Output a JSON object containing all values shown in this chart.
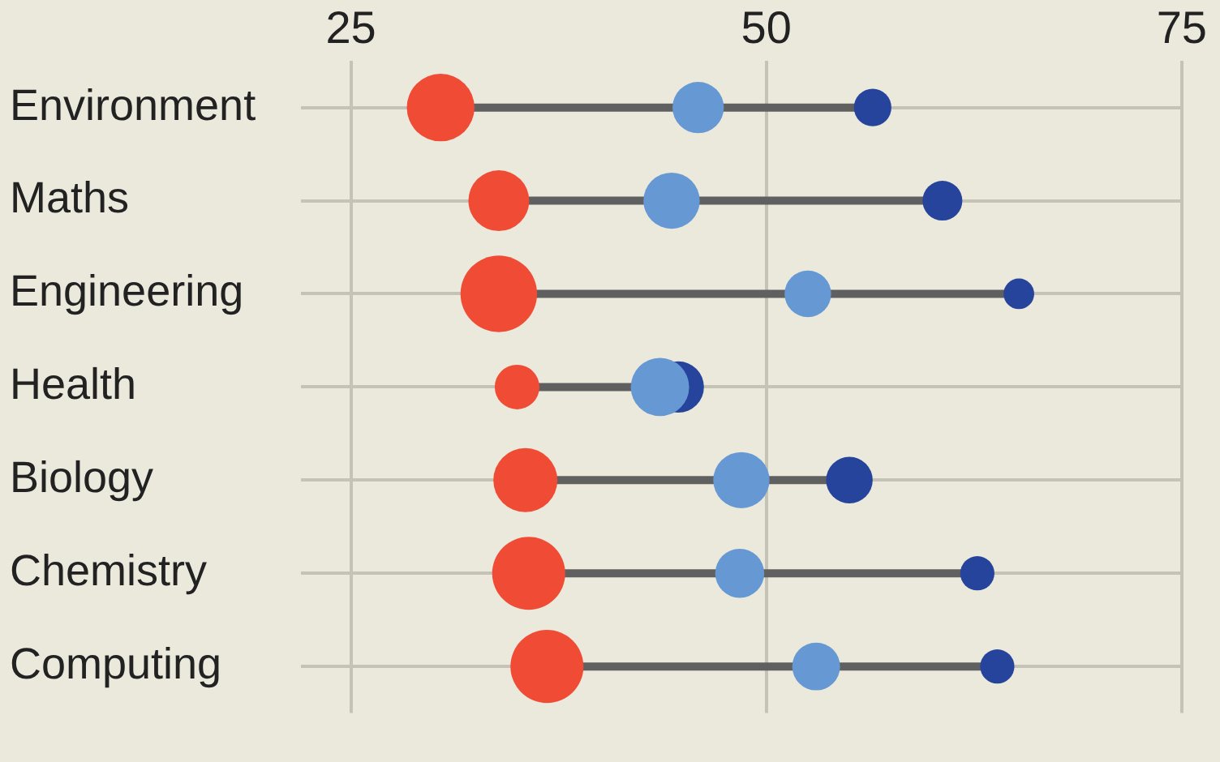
{
  "chart_data": {
    "type": "bubble",
    "orientation": "horizontal",
    "categories": [
      "Environment",
      "Maths",
      "Engineering",
      "Health",
      "Biology",
      "Chemistry",
      "Computing"
    ],
    "series": [
      {
        "color": "#f04c35",
        "values": [
          30.4,
          33.9,
          33.9,
          35.0,
          35.5,
          35.7,
          36.8
        ],
        "sizes": [
          0.78,
          0.63,
          1,
          0.34,
          0.7,
          0.91,
          0.91
        ]
      },
      {
        "color": "#27449c",
        "values": [
          56.4,
          60.6,
          65.2,
          44.7,
          55.0,
          62.7,
          63.9
        ],
        "sizes": [
          0.24,
          0.27,
          0.16,
          0.45,
          0.37,
          0.2,
          0.2
        ]
      },
      {
        "color": "#6699d4",
        "values": [
          45.9,
          44.3,
          52.5,
          43.6,
          48.5,
          48.4,
          53.0
        ],
        "sizes": [
          0.45,
          0.54,
          0.37,
          0.58,
          0.54,
          0.41,
          0.39
        ]
      }
    ],
    "xlim": [
      22,
      75
    ],
    "xticks": [
      25,
      50,
      75
    ],
    "grid": true,
    "legend": false
  }
}
